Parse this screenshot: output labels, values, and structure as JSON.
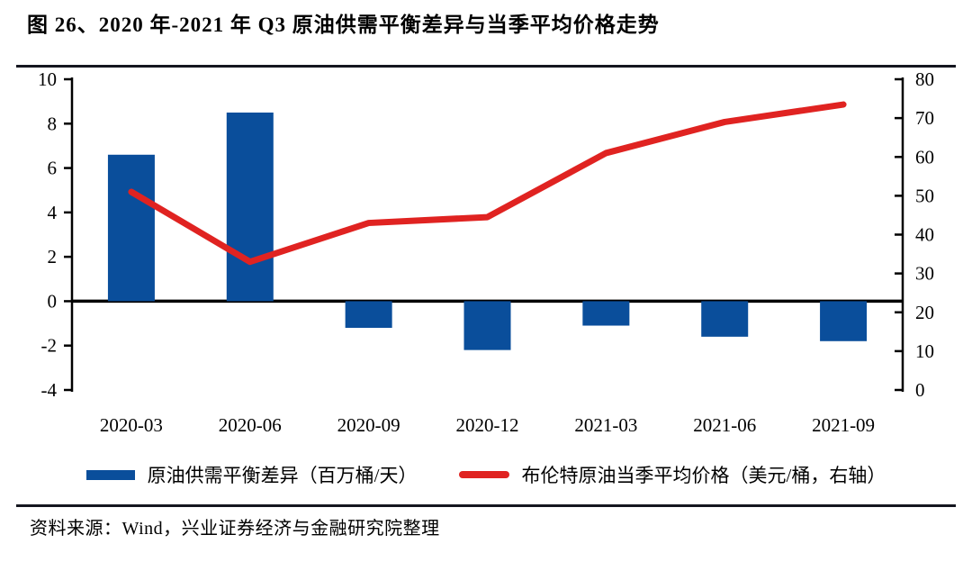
{
  "title": "图 26、2020 年-2021 年 Q3 原油供需平衡差异与当季平均价格走势",
  "source": "资料来源：Wind，兴业证券经济与金融研究院整理",
  "colors": {
    "bar": "#0a4e9b",
    "line": "#e02321",
    "axis": "#000000",
    "rule": "#14161f",
    "text": "#000000",
    "background": "#ffffff"
  },
  "legend": [
    {
      "label": "原油供需平衡差异（百万桶/天）",
      "marker": "bar"
    },
    {
      "label": "布伦特原油当季平均价格（美元/桶，右轴）",
      "marker": "line"
    }
  ],
  "chart_data": {
    "type": "bar",
    "subtype": "bar+line dual axis",
    "title": "2020年-2021年Q3原油供需平衡差异与当季平均价格走势",
    "categories": [
      "2020-03",
      "2020-06",
      "2020-09",
      "2020-12",
      "2021-03",
      "2021-06",
      "2021-09"
    ],
    "series": [
      {
        "name": "原油供需平衡差异（百万桶/天）",
        "type": "bar",
        "axis": "left",
        "color": "#0a4e9b",
        "values": [
          6.6,
          8.5,
          -1.2,
          -2.2,
          -1.1,
          -1.6,
          -1.8
        ]
      },
      {
        "name": "布伦特原油当季平均价格（美元/桶，右轴）",
        "type": "line",
        "axis": "right",
        "color": "#e02321",
        "values": [
          51,
          33,
          43,
          44.5,
          61,
          69,
          73.5
        ]
      }
    ],
    "left_axis": {
      "min": -4,
      "max": 10,
      "ticks": [
        10,
        8,
        6,
        4,
        2,
        0,
        -2,
        -4
      ]
    },
    "right_axis": {
      "min": 0,
      "max": 80,
      "ticks": [
        80,
        70,
        60,
        50,
        40,
        30,
        20,
        10,
        0
      ]
    },
    "grid": false,
    "zero_line": true,
    "legend_position": "bottom"
  }
}
